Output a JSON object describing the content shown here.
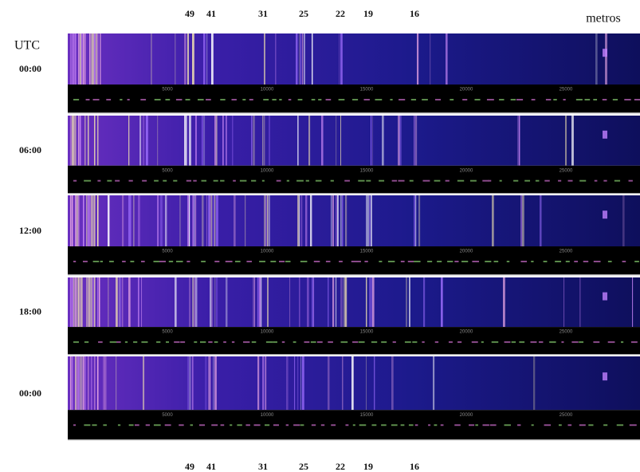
{
  "header": {
    "bands_top": [
      "49",
      "41",
      "31",
      "25",
      "22",
      "19",
      "16"
    ],
    "unit": "metros",
    "time_label": "UTC"
  },
  "panels": [
    {
      "time": "00:00"
    },
    {
      "time": "06:00"
    },
    {
      "time": "12:00"
    },
    {
      "time": "18:00"
    },
    {
      "time": "00:00"
    }
  ],
  "scale_labels": [
    "5000",
    "10000",
    "15000",
    "20000",
    "25000"
  ],
  "footer": {
    "bands_bottom": [
      "49",
      "41",
      "31",
      "25",
      "22",
      "19",
      "16"
    ]
  }
}
